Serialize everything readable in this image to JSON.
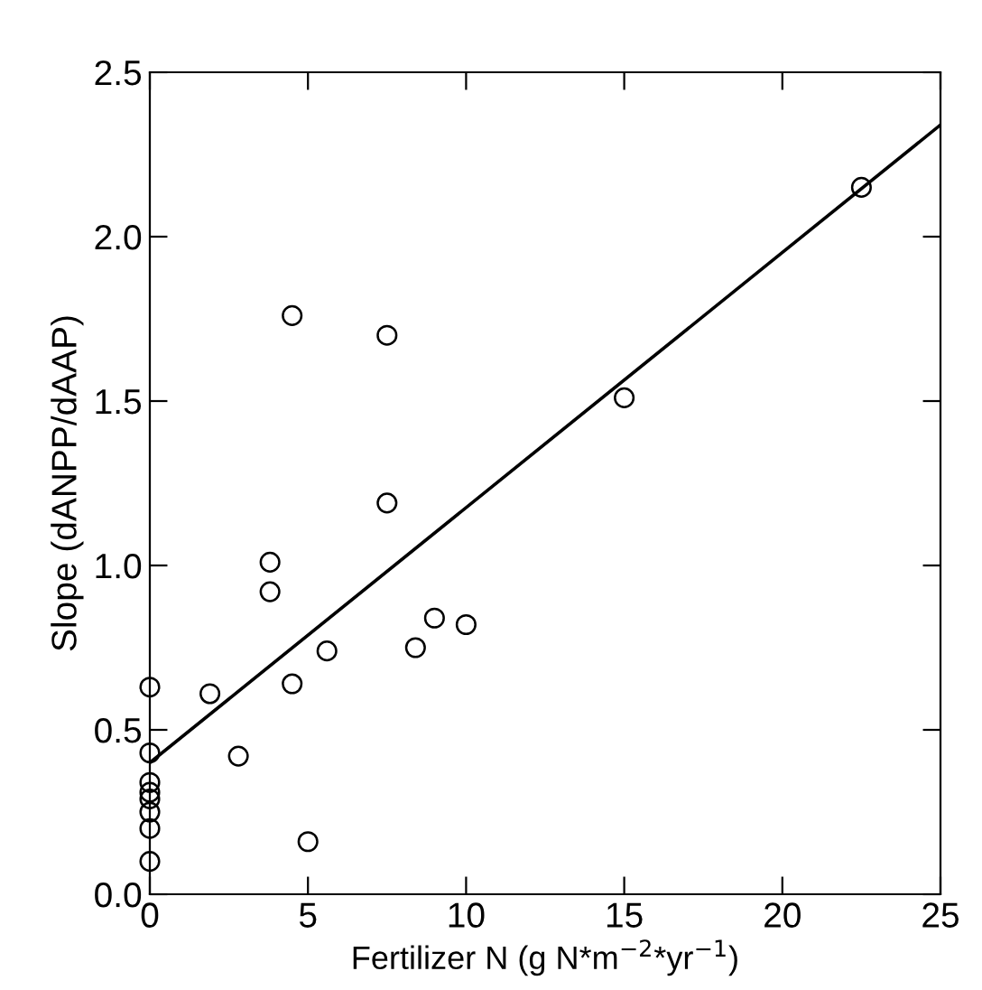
{
  "chart_data": {
    "type": "scatter",
    "xlabel": "Fertilizer N (g N*m$^{−2}$*yr$^{−1}$)",
    "ylabel": "Slope (dANPP/dAAP)",
    "xlim": [
      0,
      25
    ],
    "ylim": [
      0,
      2.5
    ],
    "xticks": [
      0,
      5,
      10,
      15,
      20,
      25
    ],
    "yticks": [
      {
        "value": 0,
        "label": "0.0"
      },
      0.5,
      {
        "value": 1,
        "label": "1.0"
      },
      1.5,
      {
        "value": 2,
        "label": "2.0"
      },
      2.5
    ],
    "grid": false,
    "legend": false,
    "series": [
      {
        "marker": "circle",
        "color": "#000000",
        "x": [
          0,
          0,
          0,
          0,
          0,
          0,
          0,
          0,
          1.9,
          2.8,
          3.8,
          3.8,
          4.5,
          4.5,
          5.0,
          5.6,
          7.5,
          7.5,
          8.4,
          9.0,
          10.0,
          15,
          22.5
        ],
        "values": [
          0.63,
          0.43,
          0.34,
          0.31,
          0.29,
          0.25,
          0.2,
          0.1,
          0.61,
          0.42,
          1.01,
          0.92,
          1.76,
          0.64,
          0.16,
          0.74,
          1.7,
          1.19,
          0.75,
          0.84,
          0.82,
          1.51,
          2.15
        ]
      },
      {
        "type": "line",
        "line_style": "solid",
        "color": "#000000",
        "x": [
          0,
          25
        ],
        "values": [
          0.4,
          2.34
        ]
      }
    ]
  }
}
